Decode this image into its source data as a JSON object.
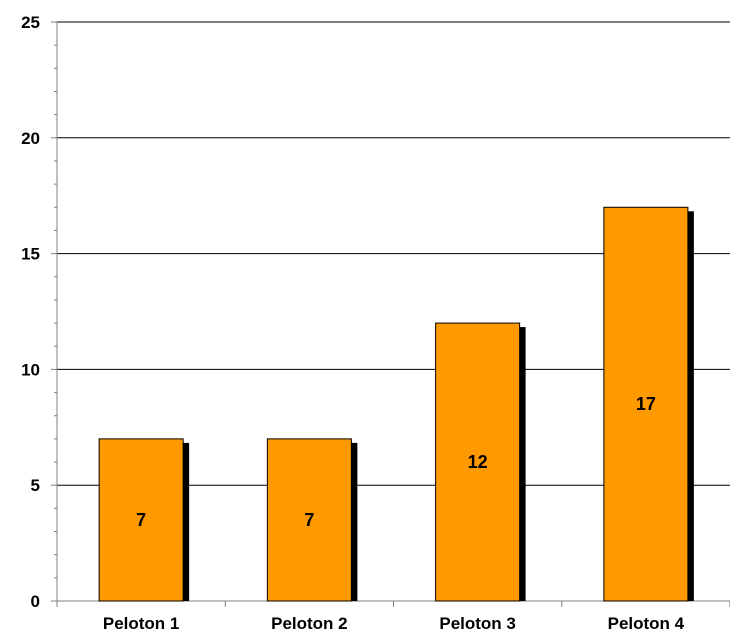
{
  "chart_data": {
    "type": "bar",
    "categories": [
      "Peloton 1",
      "Peloton 2",
      "Peloton 3",
      "Peloton 4"
    ],
    "values": [
      7,
      7,
      12,
      17
    ],
    "data_labels": [
      "7",
      "7",
      "12",
      "17"
    ],
    "title": "",
    "xlabel": "",
    "ylabel": "",
    "ylim": [
      0,
      25
    ],
    "yticks": [
      0,
      5,
      10,
      15,
      20,
      25
    ],
    "ytick_labels": [
      "0",
      "5",
      "10",
      "15",
      "20",
      "25"
    ],
    "grid": true,
    "legend": "none",
    "colors": {
      "bar_fill": "#FF9900",
      "bar_stroke": "#000000",
      "bar_shadow": "#000000",
      "gridline": "#000000",
      "axis": "#808080"
    }
  }
}
